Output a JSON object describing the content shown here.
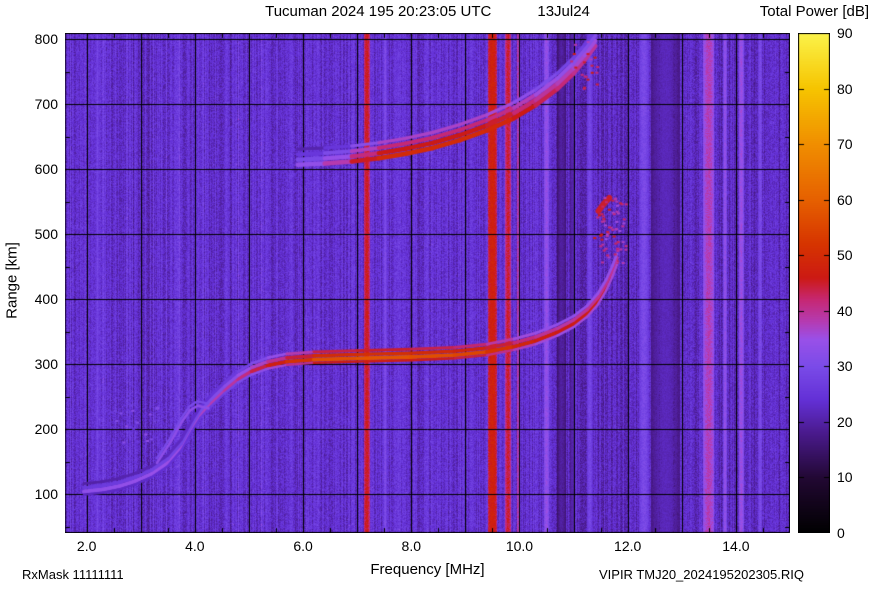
{
  "header": {
    "title_main": "Tucuman 2024 195 20:23:05 UTC",
    "title_date": "13Jul24",
    "colorbar_title": "Total Power [dB]"
  },
  "footer": {
    "rxmask": "RxMask 11111111",
    "file_label": "VIPIR  TMJ20_2024195202305.RIQ"
  },
  "chart_data": {
    "type": "heatmap",
    "title": "Tucuman 2024 195 20:23:05 UTC   13Jul24",
    "xlabel": "Frequency [MHz]",
    "ylabel": "Range [km]",
    "colorbar_label": "Total Power [dB]",
    "x_range_mhz": [
      1.6,
      15.0
    ],
    "y_range_km": [
      40,
      810
    ],
    "value_range_db": [
      0,
      90
    ],
    "grid": "on",
    "x_grid_step_mhz": 1.0,
    "y_grid_step_km": 100,
    "x_ticks": [
      {
        "f": 2.0,
        "label": "2.0"
      },
      {
        "f": 4.0,
        "label": "4.0"
      },
      {
        "f": 6.0,
        "label": "6.0"
      },
      {
        "f": 8.0,
        "label": "8.0"
      },
      {
        "f": 10.0,
        "label": "10.0"
      },
      {
        "f": 12.0,
        "label": "12.0"
      },
      {
        "f": 14.0,
        "label": "14.0"
      }
    ],
    "y_ticks": [
      {
        "r": 100,
        "label": "100"
      },
      {
        "r": 200,
        "label": "200"
      },
      {
        "r": 300,
        "label": "300"
      },
      {
        "r": 400,
        "label": "400"
      },
      {
        "r": 500,
        "label": "500"
      },
      {
        "r": 600,
        "label": "600"
      },
      {
        "r": 700,
        "label": "700"
      },
      {
        "r": 800,
        "label": "800"
      }
    ],
    "colorbar_ticks": [
      {
        "v": 0,
        "label": "0"
      },
      {
        "v": 10,
        "label": "10"
      },
      {
        "v": 20,
        "label": "20"
      },
      {
        "v": 30,
        "label": "30"
      },
      {
        "v": 40,
        "label": "40"
      },
      {
        "v": 50,
        "label": "50"
      },
      {
        "v": 60,
        "label": "60"
      },
      {
        "v": 70,
        "label": "70"
      },
      {
        "v": 80,
        "label": "80"
      },
      {
        "v": 90,
        "label": "90"
      }
    ],
    "colormap_stops": [
      [
        0,
        "#000000"
      ],
      [
        10,
        "#220833"
      ],
      [
        18,
        "#4a1a8c"
      ],
      [
        24,
        "#6330d6"
      ],
      [
        30,
        "#7a4be8"
      ],
      [
        35,
        "#9a50e8"
      ],
      [
        38,
        "#b43cb4"
      ],
      [
        42,
        "#c62874"
      ],
      [
        46,
        "#cc1a14"
      ],
      [
        52,
        "#d63400"
      ],
      [
        60,
        "#e66000"
      ],
      [
        70,
        "#f08e00"
      ],
      [
        80,
        "#f6c400"
      ],
      [
        90,
        "#fbf34a"
      ]
    ],
    "noise": {
      "base_db": 24,
      "pixel_variation_db": 6,
      "column_variation_db": 3,
      "left_streak_max_f": 5.4,
      "right_dim_start_f": 10.35,
      "right_dim_db": 1.5
    },
    "interference_stripes": [
      {
        "f": 2.2,
        "w": 0.05,
        "db": 29
      },
      {
        "f": 7.18,
        "w": 0.1,
        "db": 46
      },
      {
        "f": 7.52,
        "w": 0.05,
        "db": 31
      },
      {
        "f": 9.5,
        "w": 0.16,
        "db": 48
      },
      {
        "f": 9.79,
        "w": 0.1,
        "db": 45
      },
      {
        "f": 9.97,
        "w": 0.05,
        "db": 39
      },
      {
        "f": 10.5,
        "w": 0.1,
        "db": 34
      },
      {
        "f": 10.78,
        "w": 0.16,
        "db": 20,
        "dark": true
      },
      {
        "f": 10.98,
        "w": 0.1,
        "db": 21,
        "dark": true
      },
      {
        "f": 11.3,
        "w": 0.1,
        "db": 29
      },
      {
        "f": 12.3,
        "w": 0.18,
        "db": 30
      },
      {
        "f": 12.7,
        "w": 0.55,
        "db": 22,
        "dark": true
      },
      {
        "f": 13.5,
        "w": 0.2,
        "db": 38
      },
      {
        "f": 13.8,
        "w": 0.06,
        "db": 34
      },
      {
        "f": 14.1,
        "w": 0.09,
        "db": 35
      },
      {
        "f": 14.45,
        "w": 0.08,
        "db": 30
      }
    ],
    "traces": [
      {
        "name": "F-layer first hop echo",
        "width_km": 6,
        "points": [
          [
            1.95,
            104
          ],
          [
            2.3,
            107
          ],
          [
            2.6,
            112
          ],
          [
            2.9,
            120
          ],
          [
            3.2,
            131
          ],
          [
            3.5,
            148
          ],
          [
            3.75,
            172
          ],
          [
            3.95,
            202
          ],
          [
            4.1,
            222
          ],
          [
            4.3,
            240
          ],
          [
            4.55,
            260
          ],
          [
            4.8,
            277
          ],
          [
            5.05,
            289
          ],
          [
            5.35,
            298
          ],
          [
            5.7,
            304
          ],
          [
            6.2,
            307
          ],
          [
            7.0,
            309
          ],
          [
            8.0,
            311
          ],
          [
            8.8,
            314
          ],
          [
            9.4,
            319
          ],
          [
            9.9,
            327
          ],
          [
            10.3,
            336
          ],
          [
            10.7,
            349
          ],
          [
            11.0,
            362
          ],
          [
            11.25,
            378
          ],
          [
            11.45,
            397
          ],
          [
            11.6,
            418
          ],
          [
            11.72,
            440
          ],
          [
            11.8,
            458
          ]
        ],
        "db_profile": [
          [
            2.0,
            33
          ],
          [
            3.0,
            34
          ],
          [
            4.0,
            36
          ],
          [
            4.8,
            40
          ],
          [
            5.4,
            46
          ],
          [
            6.0,
            52
          ],
          [
            6.5,
            57
          ],
          [
            7.5,
            58
          ],
          [
            9.0,
            56
          ],
          [
            9.6,
            52
          ],
          [
            10.2,
            48
          ],
          [
            10.8,
            46
          ],
          [
            11.3,
            47
          ],
          [
            11.85,
            47
          ]
        ],
        "strands": [
          [
            0,
            0,
            1
          ],
          [
            6,
            -7,
            0.85
          ],
          [
            12,
            -13,
            0.7
          ],
          [
            -5,
            -11,
            0.6
          ]
        ]
      },
      {
        "name": "F-layer second hop echo",
        "width_km": 7,
        "points": [
          [
            5.9,
            607
          ],
          [
            6.4,
            609
          ],
          [
            6.9,
            612
          ],
          [
            7.4,
            617
          ],
          [
            7.9,
            624
          ],
          [
            8.4,
            633
          ],
          [
            8.9,
            645
          ],
          [
            9.4,
            660
          ],
          [
            9.9,
            679
          ],
          [
            10.3,
            699
          ],
          [
            10.7,
            724
          ],
          [
            11.0,
            748
          ],
          [
            11.2,
            768
          ],
          [
            11.4,
            790
          ]
        ],
        "db_profile": [
          [
            5.9,
            32
          ],
          [
            6.5,
            36
          ],
          [
            7.0,
            44
          ],
          [
            7.6,
            50
          ],
          [
            9.5,
            50
          ],
          [
            10.1,
            46
          ],
          [
            10.6,
            43
          ],
          [
            11.0,
            41
          ],
          [
            11.4,
            39
          ]
        ],
        "strands": [
          [
            0,
            0,
            1
          ],
          [
            8,
            -4,
            0.95
          ],
          [
            16,
            -8,
            0.85
          ],
          [
            24,
            -13,
            0.7
          ]
        ]
      },
      {
        "name": "E-F cusp faint trace",
        "width_km": 4,
        "points": [
          [
            3.3,
            148
          ],
          [
            3.55,
            180
          ],
          [
            3.75,
            210
          ],
          [
            3.9,
            228
          ],
          [
            4.05,
            236
          ],
          [
            4.25,
            232
          ]
        ],
        "db_profile": [
          [
            3.3,
            33
          ],
          [
            4.25,
            33
          ]
        ],
        "strands": [
          [
            0,
            0,
            1
          ],
          [
            7,
            -3,
            0.8
          ]
        ]
      },
      {
        "name": "critical frequency blob",
        "width_km": 9,
        "points": [
          [
            11.46,
            536
          ],
          [
            11.56,
            547
          ],
          [
            11.66,
            556
          ]
        ],
        "db_profile": [
          [
            11.4,
            45
          ],
          [
            11.7,
            45
          ]
        ],
        "strands": [
          [
            0,
            0,
            1
          ]
        ]
      }
    ],
    "spread_echoes": [
      {
        "f_min": 11.5,
        "f_max": 11.95,
        "r_min": 445,
        "r_max": 565,
        "count": 45,
        "db": 40
      },
      {
        "f_min": 11.35,
        "f_max": 11.8,
        "r_min": 480,
        "r_max": 560,
        "count": 18,
        "db": 43
      },
      {
        "f_min": 10.9,
        "f_max": 11.6,
        "r_min": 720,
        "r_max": 800,
        "count": 20,
        "db": 42
      },
      {
        "f_min": 2.45,
        "f_max": 3.3,
        "r_min": 180,
        "r_max": 235,
        "count": 22,
        "db": 29
      }
    ]
  }
}
